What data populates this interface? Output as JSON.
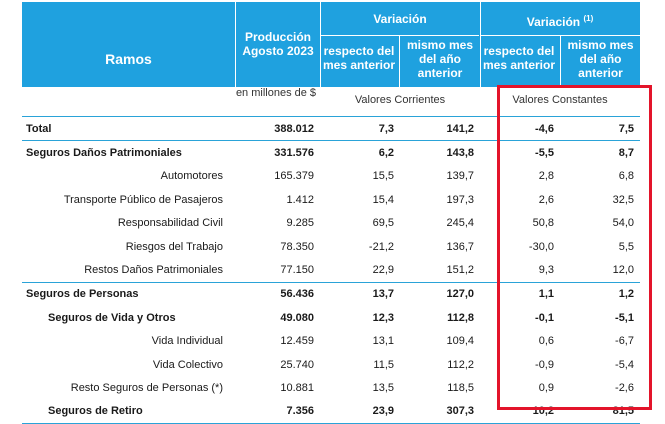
{
  "header": {
    "ramos": "Ramos",
    "produccion": "Producción Agosto 2023",
    "variacion": "Variación",
    "variacion2": "Variación",
    "footnote_mark": "(1)",
    "resp_mes_ant": "respecto del mes anterior",
    "mismo_mes": "mismo mes del año anterior",
    "resp_mes_ant2": "respecto del mes anterior",
    "mismo_mes2": "mismo mes del año anterior"
  },
  "subheader": {
    "units": "en millones de $",
    "corrientes": "Valores Corrientes",
    "constantes": "Valores Constantes"
  },
  "rows": [
    {
      "label": "Total",
      "prod": "388.012",
      "c1": "7,3",
      "c2": "141,2",
      "k1": "-4,6",
      "k2": "7,5"
    },
    {
      "label": "Seguros Daños Patrimoniales",
      "prod": "331.576",
      "c1": "6,2",
      "c2": "143,8",
      "k1": "-5,5",
      "k2": "8,7"
    },
    {
      "label": "Automotores",
      "prod": "165.379",
      "c1": "15,5",
      "c2": "139,7",
      "k1": "2,8",
      "k2": "6,8"
    },
    {
      "label": "Transporte Público de Pasajeros",
      "prod": "1.412",
      "c1": "15,4",
      "c2": "197,3",
      "k1": "2,6",
      "k2": "32,5"
    },
    {
      "label": "Responsabilidad Civil",
      "prod": "9.285",
      "c1": "69,5",
      "c2": "245,4",
      "k1": "50,8",
      "k2": "54,0"
    },
    {
      "label": "Riesgos del Trabajo",
      "prod": "78.350",
      "c1": "-21,2",
      "c2": "136,7",
      "k1": "-30,0",
      "k2": "5,5"
    },
    {
      "label": "Restos Daños Patrimoniales",
      "prod": "77.150",
      "c1": "22,9",
      "c2": "151,2",
      "k1": "9,3",
      "k2": "12,0"
    },
    {
      "label": "Seguros de Personas",
      "prod": "56.436",
      "c1": "13,7",
      "c2": "127,0",
      "k1": "1,1",
      "k2": "1,2"
    },
    {
      "label": "Seguros de Vida y Otros",
      "prod": "49.080",
      "c1": "12,3",
      "c2": "112,8",
      "k1": "-0,1",
      "k2": "-5,1"
    },
    {
      "label": "Vida Individual",
      "prod": "12.459",
      "c1": "13,1",
      "c2": "109,4",
      "k1": "0,6",
      "k2": "-6,7"
    },
    {
      "label": "Vida Colectivo",
      "prod": "25.740",
      "c1": "11,5",
      "c2": "112,2",
      "k1": "-0,9",
      "k2": "-5,4"
    },
    {
      "label": "Resto Seguros de Personas (*)",
      "prod": "10.881",
      "c1": "13,5",
      "c2": "118,5",
      "k1": "0,9",
      "k2": "-2,6"
    },
    {
      "label": "Seguros de Retiro",
      "prod": "7.356",
      "c1": "23,9",
      "c2": "307,3",
      "k1": "10,2",
      "k2": "81,5"
    }
  ],
  "colors": {
    "header_bg": "#1fa1df",
    "rule": "#2aa3d8",
    "highlight_box": "#e3142a"
  }
}
